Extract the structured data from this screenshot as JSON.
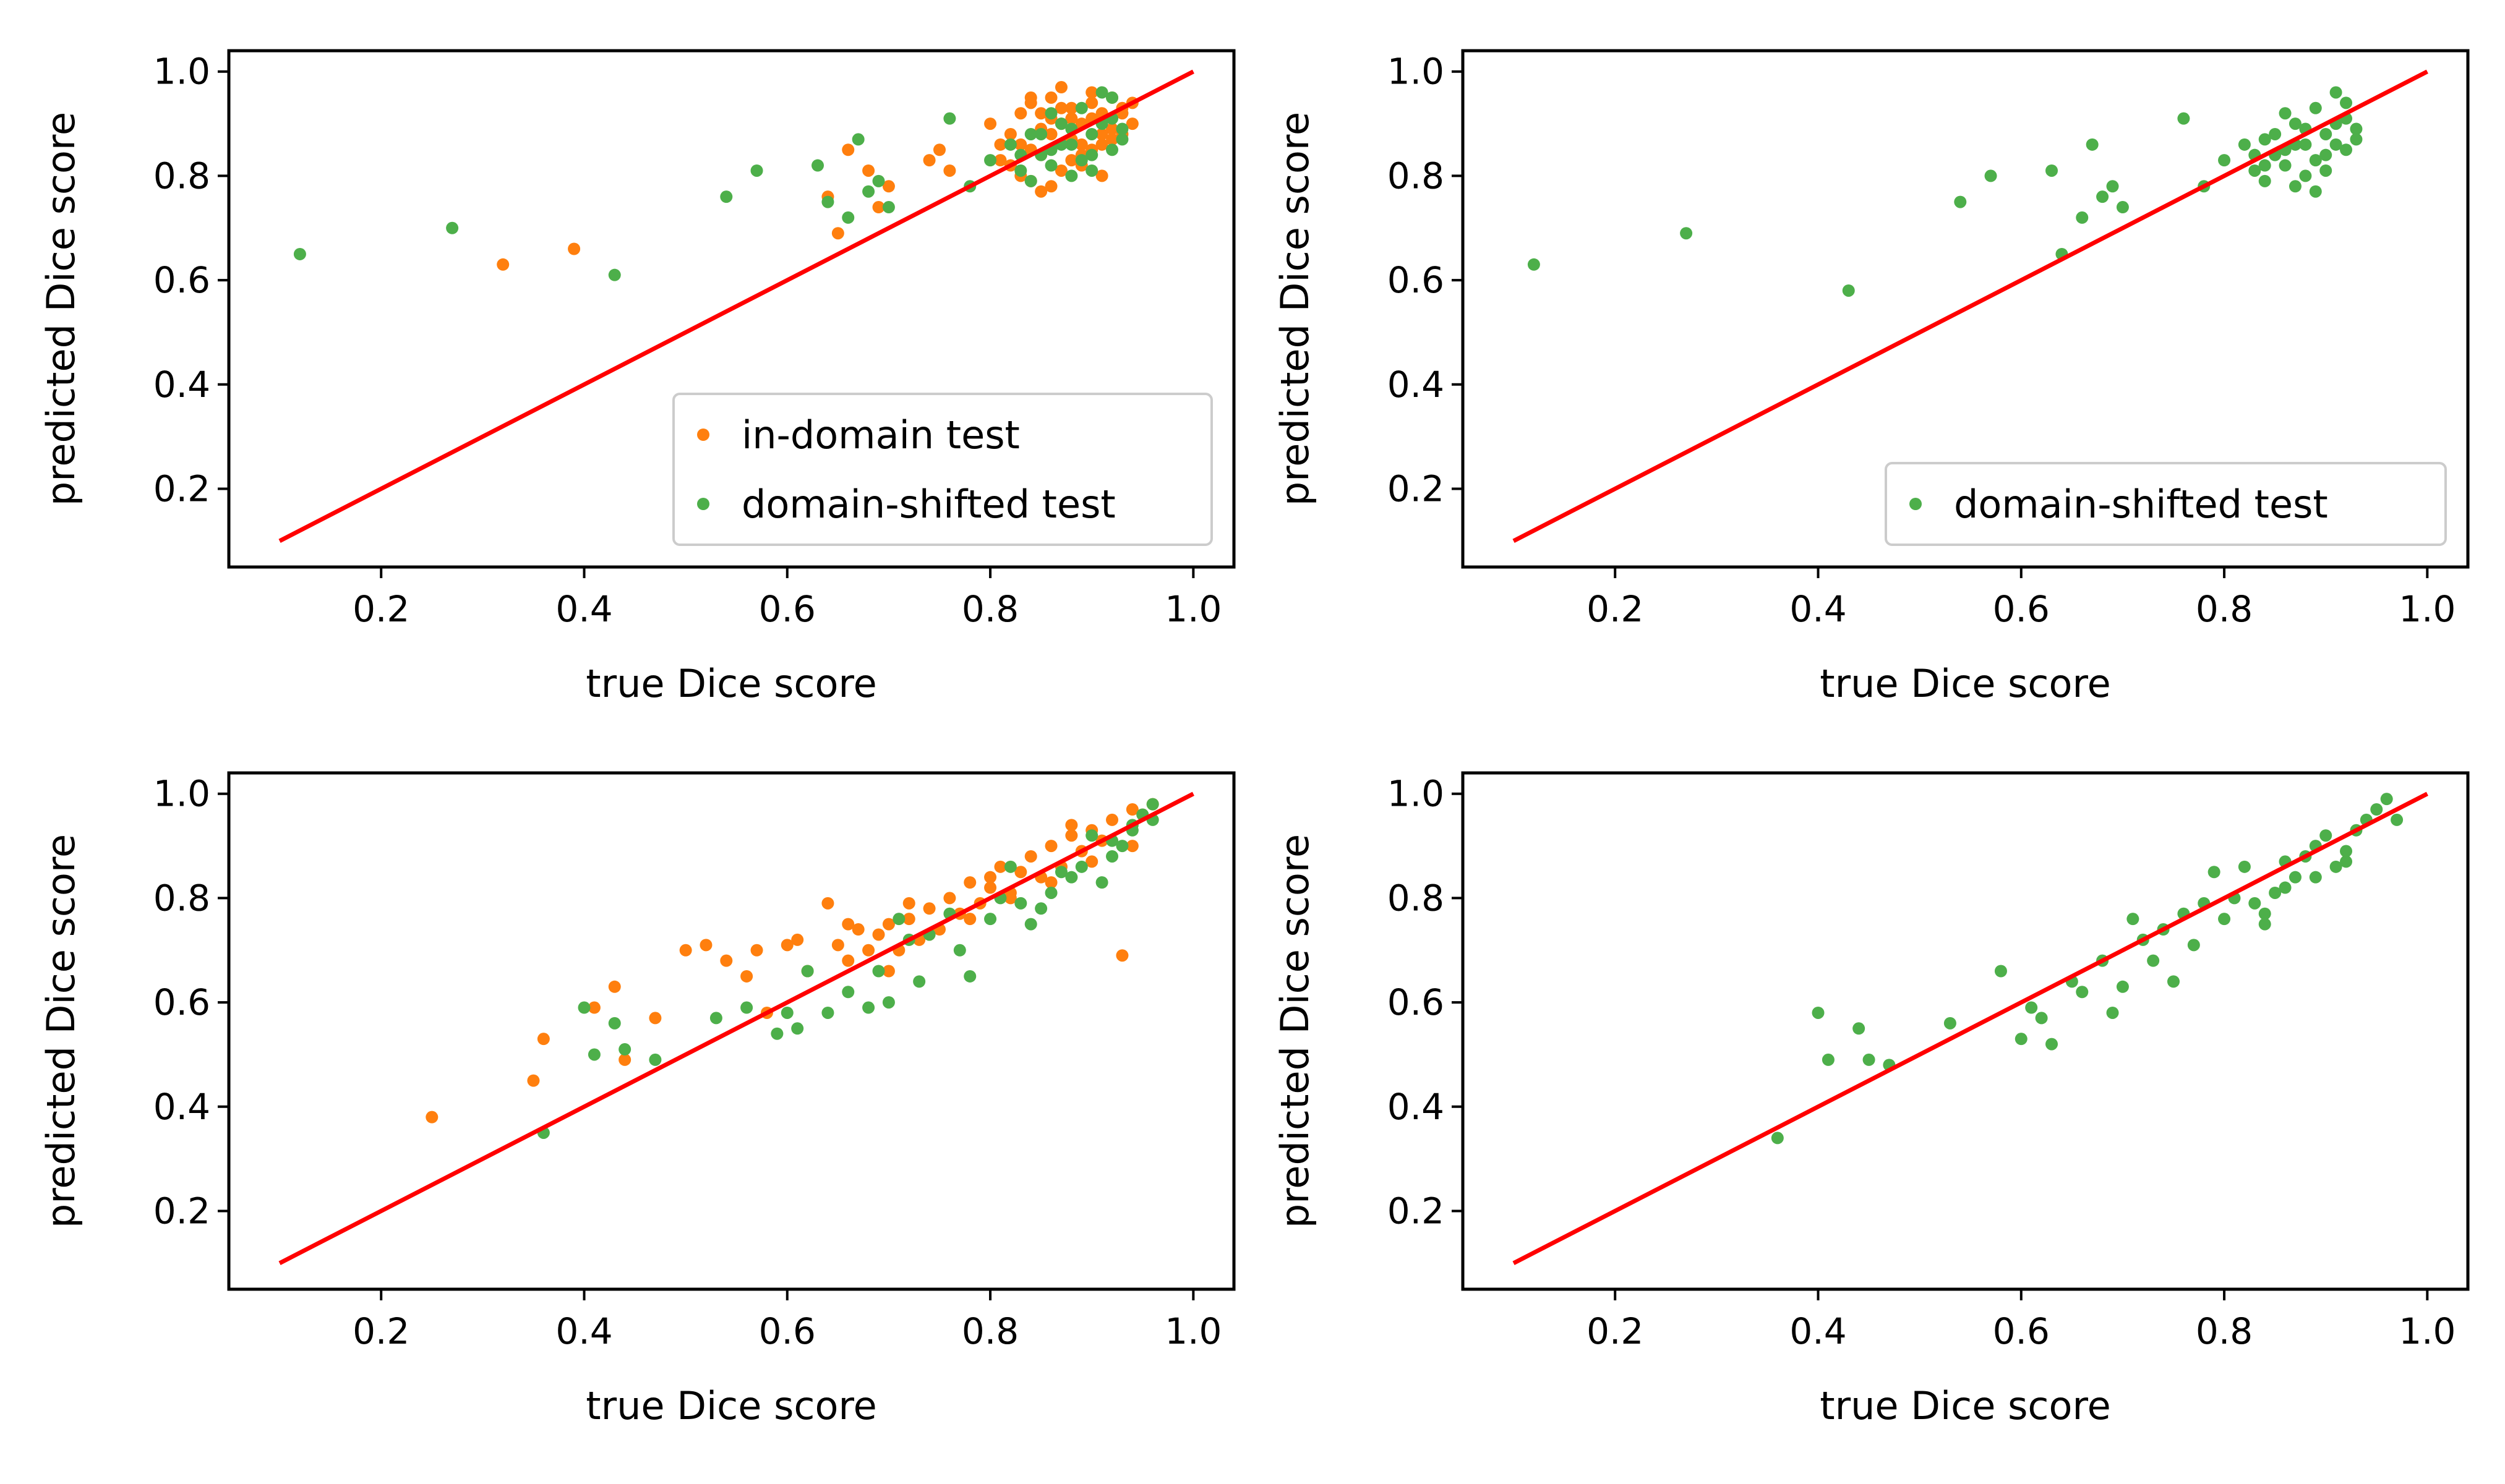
{
  "chart_data": [
    {
      "type": "scatter",
      "xlabel": "true Dice score",
      "ylabel": "predicted Dice score",
      "xlim": [
        0.05,
        1.04
      ],
      "ylim": [
        0.05,
        1.04
      ],
      "xticks": [
        "0.2",
        "0.4",
        "0.6",
        "0.8",
        "1.0"
      ],
      "yticks": [
        "0.2",
        "0.4",
        "0.6",
        "0.8",
        "1.0"
      ],
      "legend_position": "lower-right",
      "reference_line": {
        "x": [
          0.1,
          1.0
        ],
        "y": [
          0.1,
          1.0
        ],
        "color": "#ff0000"
      },
      "series": [
        {
          "name": "in-domain test",
          "color": "#ff7f0e",
          "x": [
            0.32,
            0.39,
            0.64,
            0.65,
            0.66,
            0.68,
            0.69,
            0.7,
            0.74,
            0.75,
            0.76,
            0.8,
            0.81,
            0.82,
            0.83,
            0.84,
            0.85,
            0.86,
            0.87,
            0.88,
            0.89,
            0.9,
            0.91,
            0.92,
            0.93,
            0.94,
            0.82,
            0.84,
            0.86,
            0.88,
            0.9,
            0.92,
            0.94,
            0.83,
            0.85,
            0.87,
            0.89,
            0.91,
            0.93,
            0.81,
            0.84,
            0.86,
            0.88,
            0.9,
            0.92,
            0.85,
            0.87,
            0.89,
            0.91,
            0.93,
            0.86,
            0.88,
            0.9,
            0.84,
            0.87,
            0.89,
            0.91,
            0.83,
            0.85
          ],
          "y": [
            0.63,
            0.66,
            0.76,
            0.69,
            0.85,
            0.81,
            0.74,
            0.78,
            0.83,
            0.85,
            0.81,
            0.9,
            0.86,
            0.88,
            0.92,
            0.94,
            0.89,
            0.95,
            0.93,
            0.91,
            0.9,
            0.94,
            0.92,
            0.95,
            0.93,
            0.9,
            0.82,
            0.85,
            0.88,
            0.87,
            0.91,
            0.89,
            0.94,
            0.8,
            0.84,
            0.9,
            0.86,
            0.88,
            0.92,
            0.83,
            0.79,
            0.78,
            0.83,
            0.85,
            0.87,
            0.77,
            0.81,
            0.84,
            0.86,
            0.88,
            0.91,
            0.93,
            0.96,
            0.95,
            0.97,
            0.82,
            0.8,
            0.86,
            0.92
          ]
        },
        {
          "name": "domain-shifted test",
          "color": "#4daf4a",
          "x": [
            0.12,
            0.27,
            0.43,
            0.54,
            0.57,
            0.63,
            0.64,
            0.66,
            0.67,
            0.68,
            0.69,
            0.7,
            0.76,
            0.78,
            0.8,
            0.82,
            0.83,
            0.84,
            0.85,
            0.86,
            0.87,
            0.88,
            0.89,
            0.9,
            0.91,
            0.92,
            0.93,
            0.84,
            0.86,
            0.88,
            0.9,
            0.92,
            0.85,
            0.87,
            0.89,
            0.91,
            0.93,
            0.83,
            0.86,
            0.88,
            0.9,
            0.92
          ],
          "y": [
            0.65,
            0.7,
            0.61,
            0.76,
            0.81,
            0.82,
            0.75,
            0.72,
            0.87,
            0.77,
            0.79,
            0.74,
            0.91,
            0.78,
            0.83,
            0.86,
            0.81,
            0.88,
            0.84,
            0.82,
            0.9,
            0.86,
            0.93,
            0.88,
            0.96,
            0.85,
            0.89,
            0.79,
            0.85,
            0.8,
            0.84,
            0.91,
            0.88,
            0.86,
            0.83,
            0.9,
            0.87,
            0.84,
            0.92,
            0.89,
            0.81,
            0.95
          ]
        }
      ]
    },
    {
      "type": "scatter",
      "xlabel": "true Dice score",
      "ylabel": "predicted Dice score",
      "xlim": [
        0.05,
        1.04
      ],
      "ylim": [
        0.05,
        1.04
      ],
      "xticks": [
        "0.2",
        "0.4",
        "0.6",
        "0.8",
        "1.0"
      ],
      "yticks": [
        "0.2",
        "0.4",
        "0.6",
        "0.8",
        "1.0"
      ],
      "legend_position": "lower-right",
      "reference_line": {
        "x": [
          0.1,
          1.0
        ],
        "y": [
          0.1,
          1.0
        ],
        "color": "#ff0000"
      },
      "series": [
        {
          "name": "domain-shifted test",
          "color": "#4daf4a",
          "x": [
            0.12,
            0.27,
            0.43,
            0.54,
            0.57,
            0.63,
            0.64,
            0.66,
            0.67,
            0.68,
            0.69,
            0.7,
            0.76,
            0.78,
            0.8,
            0.82,
            0.83,
            0.84,
            0.85,
            0.86,
            0.87,
            0.88,
            0.89,
            0.9,
            0.91,
            0.92,
            0.93,
            0.84,
            0.86,
            0.88,
            0.9,
            0.92,
            0.85,
            0.87,
            0.89,
            0.91,
            0.93,
            0.83,
            0.86,
            0.88,
            0.9,
            0.92,
            0.84,
            0.87,
            0.89,
            0.91
          ],
          "y": [
            0.63,
            0.69,
            0.58,
            0.75,
            0.8,
            0.81,
            0.65,
            0.72,
            0.86,
            0.76,
            0.78,
            0.74,
            0.91,
            0.78,
            0.83,
            0.86,
            0.81,
            0.87,
            0.84,
            0.82,
            0.9,
            0.86,
            0.93,
            0.88,
            0.96,
            0.85,
            0.89,
            0.79,
            0.85,
            0.8,
            0.84,
            0.91,
            0.88,
            0.86,
            0.83,
            0.9,
            0.87,
            0.84,
            0.92,
            0.89,
            0.81,
            0.94,
            0.82,
            0.78,
            0.77,
            0.86
          ]
        }
      ]
    },
    {
      "type": "scatter",
      "xlabel": "true Dice score",
      "ylabel": "predicted Dice score",
      "xlim": [
        0.05,
        1.04
      ],
      "ylim": [
        0.05,
        1.04
      ],
      "xticks": [
        "0.2",
        "0.4",
        "0.6",
        "0.8",
        "1.0"
      ],
      "yticks": [
        "0.2",
        "0.4",
        "0.6",
        "0.8",
        "1.0"
      ],
      "reference_line": {
        "x": [
          0.1,
          1.0
        ],
        "y": [
          0.1,
          1.0
        ],
        "color": "#ff0000"
      },
      "series": [
        {
          "name": "in-domain test",
          "color": "#ff7f0e",
          "x": [
            0.25,
            0.35,
            0.36,
            0.41,
            0.43,
            0.44,
            0.47,
            0.5,
            0.52,
            0.54,
            0.56,
            0.57,
            0.58,
            0.6,
            0.61,
            0.62,
            0.64,
            0.65,
            0.66,
            0.67,
            0.68,
            0.69,
            0.7,
            0.71,
            0.72,
            0.73,
            0.74,
            0.75,
            0.76,
            0.77,
            0.78,
            0.79,
            0.8,
            0.81,
            0.82,
            0.83,
            0.84,
            0.85,
            0.86,
            0.87,
            0.88,
            0.89,
            0.9,
            0.91,
            0.92,
            0.93,
            0.94,
            0.95,
            0.96,
            0.7,
            0.74,
            0.78,
            0.82,
            0.86,
            0.9,
            0.94,
            0.66,
            0.72,
            0.8,
            0.88
          ],
          "y": [
            0.38,
            0.45,
            0.53,
            0.59,
            0.63,
            0.49,
            0.57,
            0.7,
            0.71,
            0.68,
            0.65,
            0.7,
            0.58,
            0.71,
            0.72,
            0.66,
            0.79,
            0.71,
            0.68,
            0.74,
            0.7,
            0.73,
            0.75,
            0.7,
            0.76,
            0.72,
            0.78,
            0.74,
            0.8,
            0.77,
            0.83,
            0.79,
            0.82,
            0.86,
            0.81,
            0.85,
            0.88,
            0.84,
            0.9,
            0.86,
            0.92,
            0.89,
            0.93,
            0.91,
            0.95,
            0.69,
            0.97,
            0.96,
            0.98,
            0.66,
            0.73,
            0.76,
            0.8,
            0.83,
            0.87,
            0.9,
            0.75,
            0.79,
            0.84,
            0.94
          ]
        },
        {
          "name": "domain-shifted test",
          "color": "#4daf4a",
          "x": [
            0.36,
            0.4,
            0.41,
            0.43,
            0.44,
            0.47,
            0.53,
            0.56,
            0.59,
            0.6,
            0.61,
            0.62,
            0.64,
            0.66,
            0.68,
            0.69,
            0.7,
            0.71,
            0.72,
            0.74,
            0.76,
            0.78,
            0.8,
            0.82,
            0.83,
            0.84,
            0.86,
            0.88,
            0.89,
            0.9,
            0.91,
            0.92,
            0.93,
            0.94,
            0.95,
            0.96,
            0.73,
            0.77,
            0.81,
            0.85,
            0.87,
            0.92,
            0.94,
            0.96
          ],
          "y": [
            0.35,
            0.59,
            0.5,
            0.56,
            0.51,
            0.49,
            0.57,
            0.59,
            0.54,
            0.58,
            0.55,
            0.66,
            0.58,
            0.62,
            0.59,
            0.66,
            0.6,
            0.76,
            0.72,
            0.73,
            0.77,
            0.65,
            0.76,
            0.86,
            0.79,
            0.75,
            0.81,
            0.84,
            0.86,
            0.92,
            0.83,
            0.88,
            0.9,
            0.94,
            0.96,
            0.98,
            0.64,
            0.7,
            0.8,
            0.78,
            0.85,
            0.91,
            0.93,
            0.95
          ]
        }
      ]
    },
    {
      "type": "scatter",
      "xlabel": "true Dice score",
      "ylabel": "predicted Dice score",
      "xlim": [
        0.05,
        1.04
      ],
      "ylim": [
        0.05,
        1.04
      ],
      "xticks": [
        "0.2",
        "0.4",
        "0.6",
        "0.8",
        "1.0"
      ],
      "yticks": [
        "0.2",
        "0.4",
        "0.6",
        "0.8",
        "1.0"
      ],
      "reference_line": {
        "x": [
          0.1,
          1.0
        ],
        "y": [
          0.1,
          1.0
        ],
        "color": "#ff0000"
      },
      "series": [
        {
          "name": "domain-shifted test",
          "color": "#4daf4a",
          "x": [
            0.36,
            0.4,
            0.41,
            0.44,
            0.45,
            0.47,
            0.53,
            0.58,
            0.6,
            0.61,
            0.62,
            0.63,
            0.65,
            0.66,
            0.68,
            0.69,
            0.7,
            0.71,
            0.72,
            0.73,
            0.74,
            0.76,
            0.78,
            0.79,
            0.8,
            0.82,
            0.83,
            0.84,
            0.85,
            0.86,
            0.87,
            0.88,
            0.89,
            0.9,
            0.91,
            0.92,
            0.93,
            0.94,
            0.95,
            0.96,
            0.97,
            0.75,
            0.77,
            0.81,
            0.84,
            0.86,
            0.89,
            0.92
          ],
          "y": [
            0.34,
            0.58,
            0.49,
            0.55,
            0.49,
            0.48,
            0.56,
            0.66,
            0.53,
            0.59,
            0.57,
            0.52,
            0.64,
            0.62,
            0.68,
            0.58,
            0.63,
            0.76,
            0.72,
            0.68,
            0.74,
            0.77,
            0.79,
            0.85,
            0.76,
            0.86,
            0.79,
            0.75,
            0.81,
            0.87,
            0.84,
            0.88,
            0.9,
            0.92,
            0.86,
            0.89,
            0.93,
            0.95,
            0.97,
            0.99,
            0.95,
            0.64,
            0.71,
            0.8,
            0.77,
            0.82,
            0.84,
            0.87
          ]
        }
      ]
    }
  ]
}
